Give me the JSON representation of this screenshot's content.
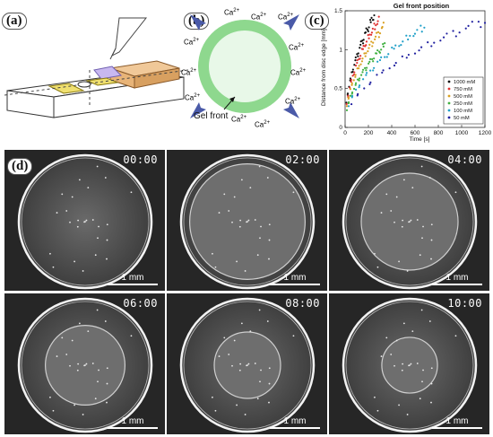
{
  "panels": {
    "a": {
      "label": "(a)"
    },
    "b": {
      "label": "(b)",
      "ion": "Ca",
      "ion_sup": "2+",
      "gel_front": "Gel front"
    },
    "c": {
      "label": "(c)"
    },
    "d": {
      "label": "(d)",
      "scale_label": "1 mm",
      "frames": [
        {
          "time": "00:00",
          "gel_front_frac": 0.0
        },
        {
          "time": "02:00",
          "gel_front_frac": 0.13
        },
        {
          "time": "04:00",
          "gel_front_frac": 0.27
        },
        {
          "time": "06:00",
          "gel_front_frac": 0.4
        },
        {
          "time": "08:00",
          "gel_front_frac": 0.5
        },
        {
          "time": "10:00",
          "gel_front_frac": 0.58
        }
      ]
    }
  },
  "chart_data": {
    "type": "scatter",
    "title": "Gel front position",
    "xlabel": "Time [s]",
    "ylabel": "Distance from disc edge [mm]",
    "xlim": [
      0,
      1200
    ],
    "ylim": [
      0,
      1.5
    ],
    "xticks": [
      "0",
      "200",
      "400",
      "600",
      "800",
      "1000",
      "1200"
    ],
    "yticks": [
      "0",
      "0.5",
      "1",
      "1.5"
    ],
    "legend_position": "bottom-right",
    "series": [
      {
        "name": "1000 mM",
        "color": "#111111",
        "tmax": 250,
        "k": 0.092
      },
      {
        "name": "750 mM",
        "color": "#e03030",
        "tmax": 290,
        "k": 0.082
      },
      {
        "name": "500 mM",
        "color": "#d9a020",
        "tmax": 330,
        "k": 0.072
      },
      {
        "name": "250 mM",
        "color": "#40b040",
        "tmax": 340,
        "k": 0.058
      },
      {
        "name": "100 mM",
        "color": "#20a0c8",
        "tmax": 680,
        "k": 0.05
      },
      {
        "name": "50 mM",
        "color": "#2020a0",
        "tmax": 1200,
        "k": 0.04
      }
    ]
  }
}
